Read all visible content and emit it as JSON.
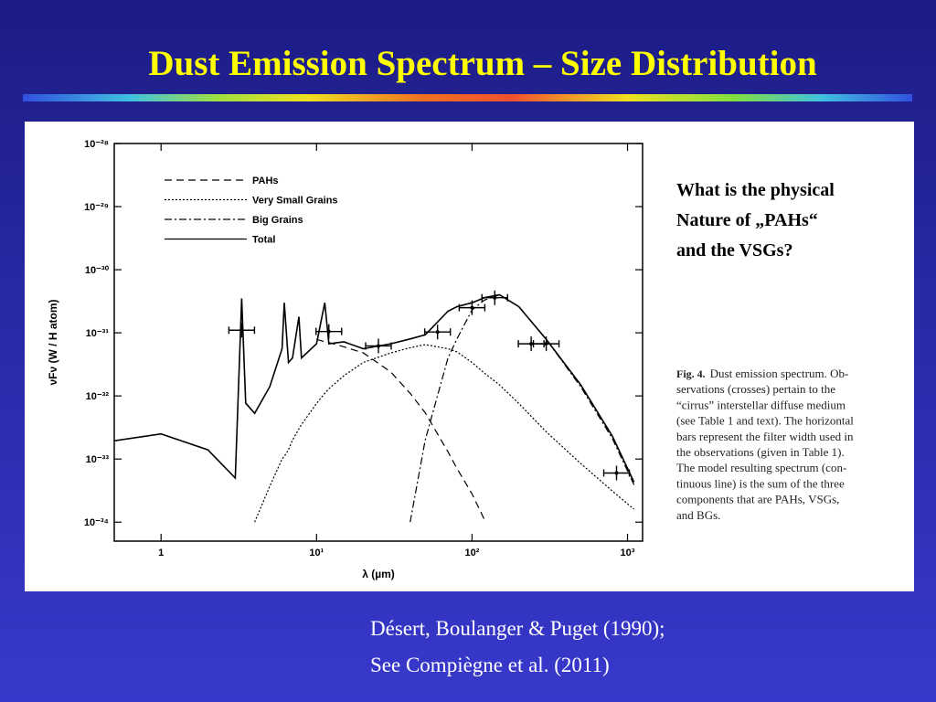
{
  "title": "Dust Emission Spectrum – Size Distribution",
  "question": [
    "What is the physical",
    "Nature of „PAHs“",
    "and the VSGs?"
  ],
  "caption": {
    "label": "Fig. 4.",
    "lines": [
      "Dust emission spectrum. Ob-",
      "servations (crosses) pertain to the",
      "“cirrus” interstellar diffuse medium",
      "(see Table 1 and text). The horizontal",
      "bars represent the filter width used in",
      "the observations (given in Table 1).",
      "The model resulting spectrum (con-",
      "tinuous line) is the sum of the three",
      "components that are PAHs, VSGs,",
      "and BGs."
    ]
  },
  "citation": [
    "Désert, Boulanger & Puget  (1990);",
    "See Compiègne et al. (2011)"
  ],
  "chart_data": {
    "type": "line",
    "x_label": "λ (µm)",
    "y_label": "νFν (W / H atom)",
    "xscale": "log",
    "yscale": "log",
    "legend": "upper left",
    "xlim": [
      0.5,
      1250
    ],
    "ylim": [
      5e-35,
      1e-28
    ],
    "xticks": [
      1,
      {
        "value": 10,
        "label": "10¹"
      },
      {
        "value": 100,
        "label": "10²"
      },
      {
        "value": 1000,
        "label": "10³"
      }
    ],
    "yticks": [
      {
        "value": 1e-28,
        "label": "10⁻²⁸"
      },
      {
        "value": 1e-29,
        "label": "10⁻²⁹"
      },
      {
        "value": 1e-30,
        "label": "10⁻³⁰"
      },
      {
        "value": 1e-31,
        "label": "10⁻³¹"
      },
      {
        "value": 1e-32,
        "label": "10⁻³²"
      },
      {
        "value": 1e-33,
        "label": "10⁻³³"
      },
      {
        "value": 1e-34,
        "label": "10⁻³⁴"
      }
    ],
    "x": [
      0.5,
      1,
      2,
      3,
      3.3,
      3.5,
      4,
      5,
      6,
      6.2,
      6.6,
      7,
      7.7,
      8,
      10,
      11.3,
      12,
      15,
      20,
      30,
      40,
      50,
      70,
      80,
      100,
      120,
      150,
      200,
      300,
      500,
      800,
      1100
    ],
    "series": [
      {
        "name": "PAHs",
        "color": "#000000",
        "dash": "8,5",
        "values": [
          null,
          null,
          null,
          null,
          null,
          null,
          null,
          null,
          null,
          null,
          null,
          null,
          null,
          null,
          7.9e-32,
          7.2e-32,
          7e-32,
          6e-32,
          4.8e-32,
          2.4e-32,
          1.1e-32,
          5.4e-33,
          1.3e-33,
          7.1e-34,
          2.8e-34,
          1.1e-34,
          null,
          null,
          null,
          null,
          null,
          null
        ]
      },
      {
        "name": "Very Small Grains",
        "color": "#000000",
        "dash": "2,2",
        "values": [
          null,
          null,
          null,
          null,
          null,
          null,
          1e-34,
          3.7e-34,
          1e-33,
          1.1e-33,
          1.4e-33,
          2e-33,
          3e-33,
          3.5e-33,
          7.6e-33,
          1.1e-32,
          1.3e-32,
          2.1e-32,
          3.4e-32,
          4.8e-32,
          5.8e-32,
          6.5e-32,
          5.6e-32,
          5e-32,
          3.4e-32,
          2.3e-32,
          1.5e-32,
          7.6e-33,
          2.7e-33,
          8.5e-34,
          3.1e-34,
          1.6e-34
        ]
      },
      {
        "name": "Big Grains",
        "color": "#000000",
        "dash": "8,3,2,3",
        "values": [
          null,
          null,
          null,
          null,
          null,
          null,
          null,
          null,
          null,
          null,
          null,
          null,
          null,
          null,
          null,
          null,
          null,
          null,
          null,
          null,
          1e-34,
          2e-33,
          4e-32,
          8e-32,
          2.3e-31,
          3.3e-31,
          4e-31,
          2.6e-31,
          7.9e-32,
          1.4e-32,
          2.1e-33,
          3.9e-34
        ]
      },
      {
        "name": "Total",
        "color": "#000000",
        "dash": "none",
        "values": [
          1.95e-33,
          2.5e-33,
          1.4e-33,
          5e-34,
          3.5e-31,
          7.7e-33,
          5.3e-33,
          1.4e-32,
          5.6e-32,
          3e-31,
          3.4e-32,
          4e-32,
          1.8e-31,
          4e-32,
          6.7e-32,
          3e-31,
          6.7e-32,
          7.2e-32,
          5.6e-32,
          6.7e-32,
          8e-32,
          9.3e-32,
          2.2e-31,
          2.6e-31,
          3e-31,
          3.6e-31,
          4e-31,
          2.6e-31,
          7.9e-32,
          1.5e-32,
          2.3e-33,
          4.3e-34
        ]
      }
    ],
    "observations": {
      "x": [
        3.3,
        12,
        25,
        60,
        100,
        140,
        240,
        300,
        850
      ],
      "values": [
        1.1e-31,
        1.05e-31,
        6.2e-32,
        1.03e-31,
        2.5e-31,
        3.6e-31,
        6.7e-32,
        6.7e-32,
        6e-34
      ]
    }
  }
}
